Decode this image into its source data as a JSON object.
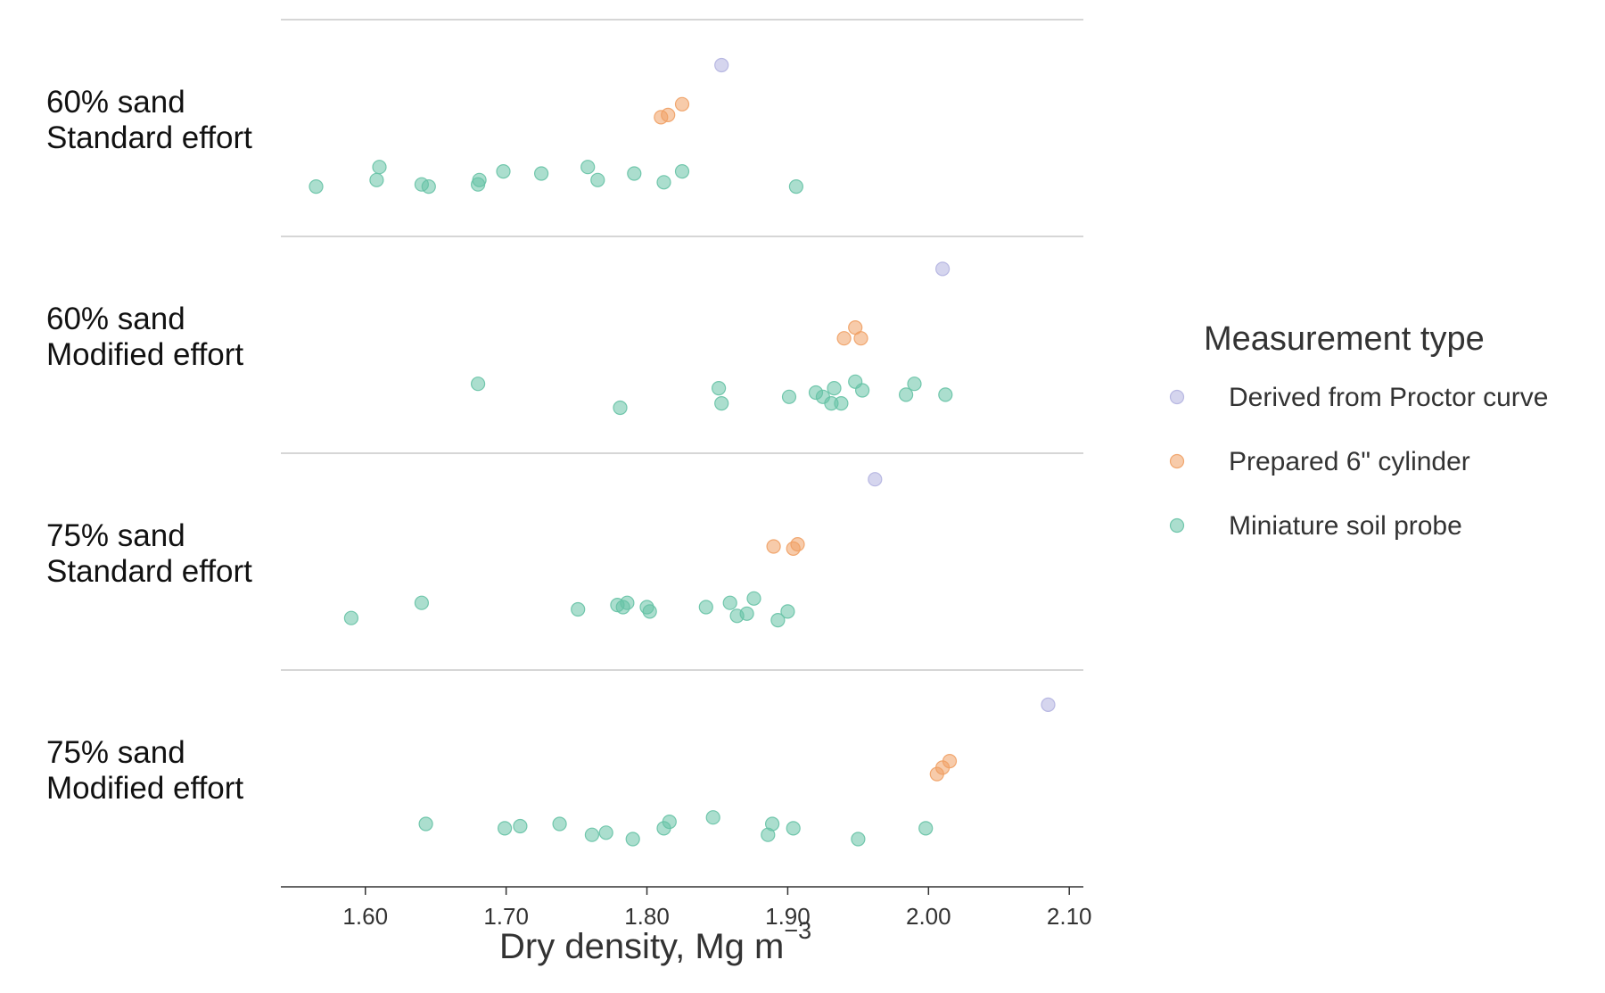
{
  "chart_data": {
    "type": "scatter",
    "title": "",
    "xlabel": "Dry density, Mg m",
    "xlabel_superscript": "−3",
    "xlim": [
      1.54,
      2.11
    ],
    "xticks": [
      1.6,
      1.7,
      1.8,
      1.9,
      2.0,
      2.1
    ],
    "xtick_labels": [
      "1.60",
      "1.70",
      "1.80",
      "1.90",
      "2.00",
      "2.10"
    ],
    "grid": false,
    "legend": {
      "title": "Measurement type",
      "placement": "right",
      "entries": [
        "Derived from Proctor curve",
        "Prepared 6\" cylinder",
        "Miniature soil probe"
      ]
    },
    "colors": {
      "Derived from Proctor curve": "#b3b3e0",
      "Prepared 6\" cylinder": "#f0a064",
      "Miniature soil probe": "#66c2a5"
    },
    "panels": [
      {
        "label_line1": "60% sand",
        "label_line2": "Standard effort",
        "series": [
          {
            "name": "Derived from Proctor curve",
            "points": [
              [
                1.853,
                0.21
              ]
            ]
          },
          {
            "name": "Prepared 6\" cylinder",
            "points": [
              [
                1.81,
                0.45
              ],
              [
                1.815,
                0.44
              ],
              [
                1.825,
                0.39
              ]
            ]
          },
          {
            "name": "Miniature soil probe",
            "points": [
              [
                1.565,
                0.77
              ],
              [
                1.608,
                0.74
              ],
              [
                1.61,
                0.68
              ],
              [
                1.64,
                0.76
              ],
              [
                1.645,
                0.77
              ],
              [
                1.68,
                0.76
              ],
              [
                1.681,
                0.74
              ],
              [
                1.698,
                0.7
              ],
              [
                1.725,
                0.71
              ],
              [
                1.758,
                0.68
              ],
              [
                1.765,
                0.74
              ],
              [
                1.791,
                0.71
              ],
              [
                1.812,
                0.75
              ],
              [
                1.825,
                0.7
              ],
              [
                1.906,
                0.77
              ]
            ]
          }
        ]
      },
      {
        "label_line1": "60% sand",
        "label_line2": "Modified effort",
        "series": [
          {
            "name": "Derived from Proctor curve",
            "points": [
              [
                2.01,
                0.15
              ]
            ]
          },
          {
            "name": "Prepared 6\" cylinder",
            "points": [
              [
                1.94,
                0.47
              ],
              [
                1.948,
                0.42
              ],
              [
                1.952,
                0.47
              ]
            ]
          },
          {
            "name": "Miniature soil probe",
            "points": [
              [
                1.68,
                0.68
              ],
              [
                1.781,
                0.79
              ],
              [
                1.851,
                0.7
              ],
              [
                1.853,
                0.77
              ],
              [
                1.901,
                0.74
              ],
              [
                1.92,
                0.72
              ],
              [
                1.925,
                0.74
              ],
              [
                1.931,
                0.77
              ],
              [
                1.933,
                0.7
              ],
              [
                1.938,
                0.77
              ],
              [
                1.948,
                0.67
              ],
              [
                1.953,
                0.71
              ],
              [
                1.984,
                0.73
              ],
              [
                1.99,
                0.68
              ],
              [
                2.012,
                0.73
              ]
            ]
          }
        ]
      },
      {
        "label_line1": "75% sand",
        "label_line2": "Standard effort",
        "series": [
          {
            "name": "Derived from Proctor curve",
            "points": [
              [
                1.962,
                0.12
              ]
            ]
          },
          {
            "name": "Prepared 6\" cylinder",
            "points": [
              [
                1.89,
                0.43
              ],
              [
                1.904,
                0.44
              ],
              [
                1.907,
                0.42
              ]
            ]
          },
          {
            "name": "Miniature soil probe",
            "points": [
              [
                1.59,
                0.76
              ],
              [
                1.64,
                0.69
              ],
              [
                1.751,
                0.72
              ],
              [
                1.779,
                0.7
              ],
              [
                1.783,
                0.71
              ],
              [
                1.786,
                0.69
              ],
              [
                1.8,
                0.71
              ],
              [
                1.802,
                0.73
              ],
              [
                1.842,
                0.71
              ],
              [
                1.859,
                0.69
              ],
              [
                1.864,
                0.75
              ],
              [
                1.871,
                0.74
              ],
              [
                1.876,
                0.67
              ],
              [
                1.893,
                0.77
              ],
              [
                1.9,
                0.73
              ]
            ]
          }
        ]
      },
      {
        "label_line1": "75% sand",
        "label_line2": "Modified effort",
        "series": [
          {
            "name": "Derived from Proctor curve",
            "points": [
              [
                2.085,
                0.16
              ]
            ]
          },
          {
            "name": "Prepared 6\" cylinder",
            "points": [
              [
                2.006,
                0.48
              ],
              [
                2.01,
                0.45
              ],
              [
                2.015,
                0.42
              ]
            ]
          },
          {
            "name": "Miniature soil probe",
            "points": [
              [
                1.643,
                0.71
              ],
              [
                1.699,
                0.73
              ],
              [
                1.71,
                0.72
              ],
              [
                1.738,
                0.71
              ],
              [
                1.761,
                0.76
              ],
              [
                1.771,
                0.75
              ],
              [
                1.79,
                0.78
              ],
              [
                1.812,
                0.73
              ],
              [
                1.816,
                0.7
              ],
              [
                1.847,
                0.68
              ],
              [
                1.886,
                0.76
              ],
              [
                1.889,
                0.71
              ],
              [
                1.904,
                0.73
              ],
              [
                1.95,
                0.78
              ],
              [
                1.998,
                0.73
              ]
            ]
          }
        ]
      }
    ]
  }
}
